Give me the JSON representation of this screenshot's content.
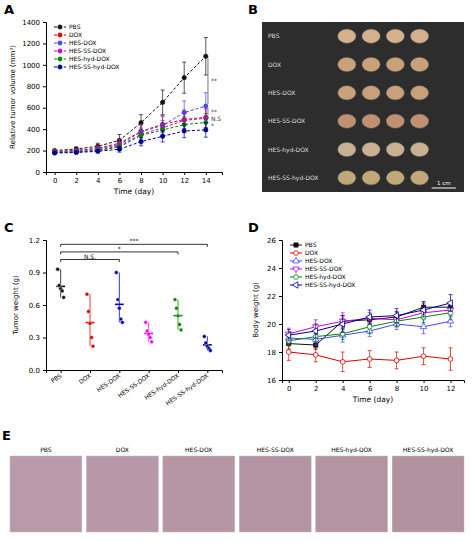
{
  "chart_data": [
    {
      "type": "line",
      "title": "A",
      "xlabel": "Time (day)",
      "ylabel": "Relative tumor volume (mm³)",
      "x": [
        0,
        2,
        4,
        6,
        8,
        10,
        12,
        14
      ],
      "series": [
        {
          "name": "PBS",
          "color": "#111111",
          "marker": "circle",
          "line_style": "dashed",
          "values": [
            200,
            215,
            240,
            295,
            460,
            650,
            880,
            1080
          ],
          "errors": [
            8,
            18,
            28,
            55,
            75,
            115,
            145,
            175
          ]
        },
        {
          "name": "DOX",
          "color": "#e00000",
          "marker": "circle",
          "line_style": "dashed",
          "values": [
            192,
            202,
            222,
            268,
            380,
            445,
            490,
            510
          ],
          "errors": [
            8,
            14,
            24,
            38,
            58,
            78,
            88,
            98
          ]
        },
        {
          "name": "HES-DOX",
          "color": "#4444ff",
          "marker": "circle",
          "line_style": "dashed",
          "values": [
            188,
            198,
            215,
            255,
            375,
            435,
            555,
            615
          ],
          "errors": [
            8,
            13,
            19,
            48,
            68,
            88,
            108,
            125
          ]
        },
        {
          "name": "HES-SS-DOX",
          "color": "#cc00cc",
          "marker": "circle",
          "line_style": "dashed",
          "values": [
            182,
            190,
            203,
            243,
            352,
            412,
            482,
            502
          ],
          "errors": [
            8,
            11,
            17,
            38,
            58,
            68,
            78,
            88
          ]
        },
        {
          "name": "HES-hyd-DOX",
          "color": "#008800",
          "marker": "circle",
          "line_style": "dashed",
          "values": [
            180,
            187,
            200,
            233,
            342,
            392,
            442,
            462
          ],
          "errors": [
            8,
            11,
            17,
            33,
            53,
            63,
            73,
            83
          ]
        },
        {
          "name": "HES-SS-hyd-DOX",
          "color": "#000099",
          "marker": "circle",
          "line_style": "dashed",
          "values": [
            177,
            182,
            193,
            213,
            283,
            333,
            383,
            393
          ],
          "errors": [
            8,
            9,
            14,
            28,
            38,
            53,
            63,
            68
          ]
        }
      ],
      "xlim": [
        -0.8,
        15.5
      ],
      "ylim": [
        0,
        1400
      ],
      "xticks": [
        0,
        2,
        4,
        6,
        8,
        10,
        12,
        14
      ],
      "yticks": [
        0,
        200,
        400,
        600,
        800,
        1000,
        1200,
        1400
      ],
      "legend": "upper left",
      "annotations": [
        {
          "x": 14.2,
          "from": 1080,
          "to": 615,
          "label": "**"
        },
        {
          "x": 14.2,
          "from": 615,
          "to": 510,
          "label": "**"
        },
        {
          "x": 14.2,
          "from": 510,
          "to": 502,
          "label": "N.S"
        },
        {
          "x": 14.2,
          "from": 502,
          "to": 462,
          "label": "*"
        }
      ]
    },
    {
      "type": "illustration",
      "title": "B",
      "categories": [
        "PBS",
        "DOX",
        "HES-DOX",
        "HES-SS-DOX",
        "HES-hyd-DOX",
        "HES-SS-hyd-DOX"
      ],
      "color": "#2d2d2d",
      "colors": [
        "#d4b08c",
        "#c8a07a",
        "#c8a07a",
        "#c09070",
        "#c8b090",
        "#c0a878"
      ],
      "annotations": [
        "1 cm"
      ]
    },
    {
      "type": "dot",
      "title": "C",
      "ylabel": "Tumor weight (g)",
      "categories": [
        "PBS",
        "DOX",
        "HES-DOX",
        "HES-SS-DOX",
        "HES-hyd-DOX",
        "HES-SS-hyd-DOX"
      ],
      "colors": [
        "#111111",
        "#e00000",
        "#0000cc",
        "#ff00ff",
        "#008800",
        "#000099"
      ],
      "values": [
        [
          0.93,
          0.78,
          0.75,
          0.73,
          0.67
        ],
        [
          0.7,
          0.54,
          0.43,
          0.3,
          0.22
        ],
        [
          0.9,
          0.65,
          0.57,
          0.47,
          0.44
        ],
        [
          0.44,
          0.36,
          0.33,
          0.3,
          0.26
        ],
        [
          0.65,
          0.57,
          0.5,
          0.42,
          0.37
        ],
        [
          0.31,
          0.25,
          0.22,
          0.2,
          0.18
        ]
      ],
      "means": [
        0.772,
        0.438,
        0.606,
        0.338,
        0.502,
        0.232
      ],
      "ylim": [
        0.0,
        1.2
      ],
      "yticks": [
        {
          "value": 0.0,
          "label": "0.0"
        },
        0.3,
        0.6,
        0.9,
        1.2
      ],
      "annotations": [
        {
          "from": "PBS",
          "to": "HES-SS-hyd-DOX",
          "y": 1.16,
          "label": "***"
        },
        {
          "from": "PBS",
          "to": "HES-hyd-DOX",
          "y": 1.09,
          "label": "*"
        },
        {
          "from": "PBS",
          "to": "HES-DOX",
          "y": 1.02,
          "label": "N.S."
        }
      ]
    },
    {
      "type": "line",
      "title": "D",
      "xlabel": "Time (day)",
      "ylabel": "Body weight (g)",
      "x": [
        0,
        2,
        4,
        6,
        8,
        10,
        12
      ],
      "series": [
        {
          "name": "PBS",
          "color": "#111111",
          "marker": "square",
          "line_style": "solid",
          "values": [
            18.6,
            18.5,
            20.2,
            20.3,
            20.5,
            21.2,
            21.2
          ],
          "errors": [
            0.4,
            0.3,
            0.4,
            0.3,
            0.4,
            0.4,
            0.3
          ]
        },
        {
          "name": "DOX",
          "color": "#e00000",
          "marker": "circle-open",
          "line_style": "solid",
          "values": [
            18.0,
            17.8,
            17.3,
            17.5,
            17.4,
            17.7,
            17.5
          ],
          "errors": [
            0.6,
            0.5,
            0.7,
            0.6,
            0.6,
            0.6,
            0.8
          ]
        },
        {
          "name": "HES-DOX",
          "color": "#4444ff",
          "marker": "triangle-up-open",
          "line_style": "solid",
          "values": [
            19.0,
            18.9,
            19.2,
            19.5,
            20.0,
            19.8,
            20.2
          ],
          "errors": [
            0.4,
            0.4,
            0.5,
            0.4,
            0.4,
            0.5,
            0.4
          ]
        },
        {
          "name": "HES-SS-DOX",
          "color": "#cc00cc",
          "marker": "triangle-down-open",
          "line_style": "solid",
          "values": [
            19.3,
            19.8,
            20.2,
            20.4,
            20.3,
            20.8,
            21.0
          ],
          "errors": [
            0.4,
            0.5,
            0.6,
            0.4,
            0.5,
            0.4,
            0.5
          ]
        },
        {
          "name": "HES-hyd-DOX",
          "color": "#008800",
          "marker": "circle-open",
          "line_style": "solid",
          "values": [
            18.8,
            19.1,
            19.3,
            19.8,
            20.2,
            20.5,
            20.8
          ],
          "errors": [
            0.3,
            0.4,
            0.4,
            0.5,
            0.4,
            0.4,
            0.5
          ]
        },
        {
          "name": "HES-SS-hyd-DOX",
          "color": "#000099",
          "marker": "triangle-left-open",
          "line_style": "solid",
          "values": [
            19.2,
            19.5,
            20.0,
            20.5,
            20.6,
            21.0,
            21.5
          ],
          "errors": [
            0.4,
            0.5,
            0.6,
            0.5,
            0.5,
            0.5,
            0.6
          ]
        }
      ],
      "xlim": [
        -0.5,
        13
      ],
      "ylim": [
        16,
        26
      ],
      "xticks": [
        0,
        2,
        4,
        6,
        8,
        10,
        12
      ],
      "yticks": [
        16,
        18,
        20,
        22,
        24,
        26
      ],
      "legend": "upper left"
    },
    {
      "type": "illustration",
      "title": "E",
      "categories": [
        "PBS",
        "DOX",
        "HES-DOX",
        "HES-SS-DOX",
        "HES-hyd-DOX",
        "HES-SS-hyd-DOX"
      ],
      "colors": [
        "#b89aaa",
        "#b898a8",
        "#b696a4",
        "#b494a2",
        "#b494a0",
        "#b2929e"
      ]
    }
  ]
}
